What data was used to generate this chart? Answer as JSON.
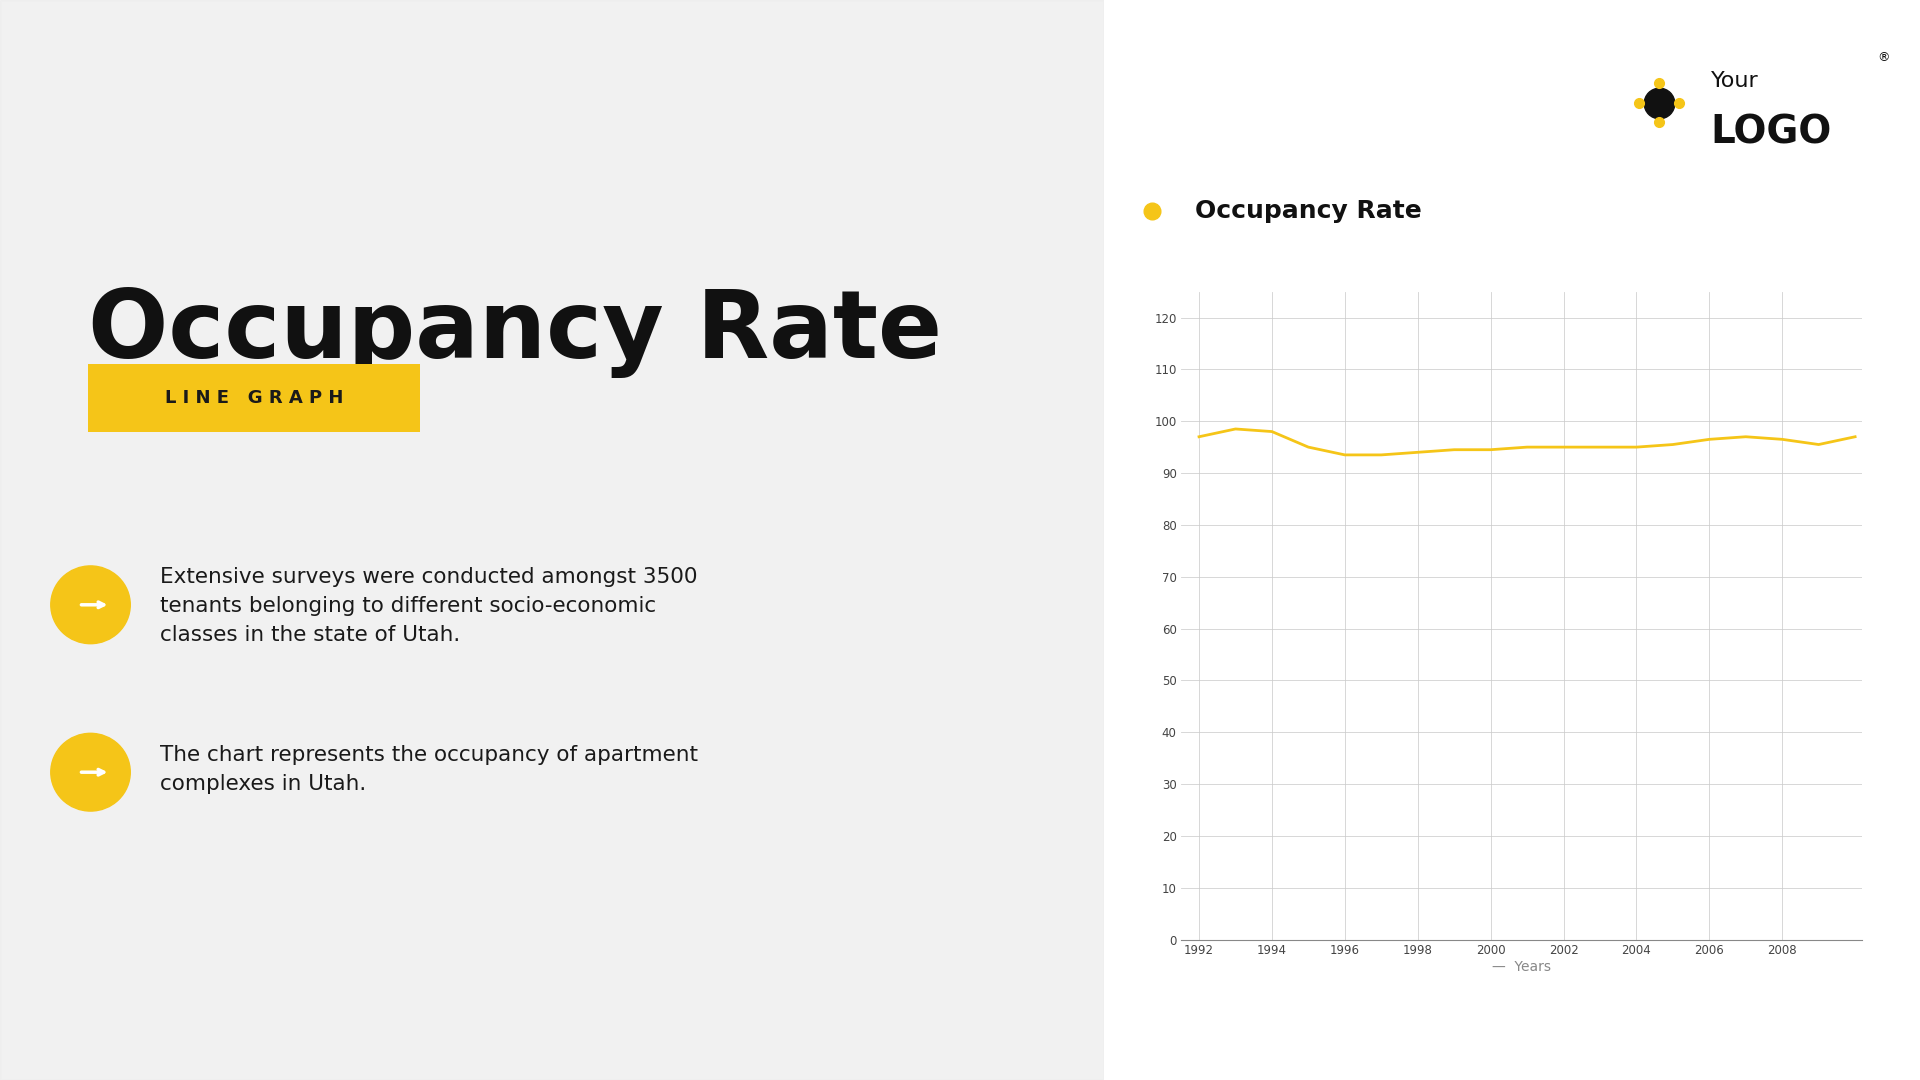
{
  "title": "Occupancy Rate",
  "subtitle": "LINE GRAPH",
  "chart_title": "Occupancy Rate",
  "bullet1": "Extensive surveys were conducted amongst 3500\ntenants belonging to different socio-economic\nclasses in the state of Utah.",
  "bullet2": "The chart represents the occupancy of apartment\ncomplexes in Utah.",
  "logo_text1": "Your",
  "logo_text2": "LOGO",
  "x_years": [
    1992,
    1993,
    1994,
    1995,
    1996,
    1997,
    1998,
    1999,
    2000,
    2001,
    2002,
    2003,
    2004,
    2005,
    2006,
    2007,
    2008,
    2009,
    2010
  ],
  "y_values": [
    97,
    98.5,
    98,
    95,
    93.5,
    93.5,
    94,
    94.5,
    94.5,
    95,
    95,
    95,
    95,
    95.5,
    96.5,
    97,
    96.5,
    95.5,
    97
  ],
  "yticks": [
    0,
    10,
    20,
    30,
    40,
    50,
    60,
    70,
    80,
    90,
    100,
    110,
    120
  ],
  "xticks": [
    1992,
    1994,
    1996,
    1998,
    2000,
    2002,
    2004,
    2006,
    2008
  ],
  "xlabel": "Years",
  "line_color": "#F5C518",
  "dot_color": "#F5C518",
  "accent_color": "#F5C518",
  "text_color": "#111111",
  "grid_color": "#CCCCCC",
  "yellow_stripe_color": "#F5C518",
  "left_bg": "#D8D8D8",
  "right_bg": "#FFFFFF"
}
